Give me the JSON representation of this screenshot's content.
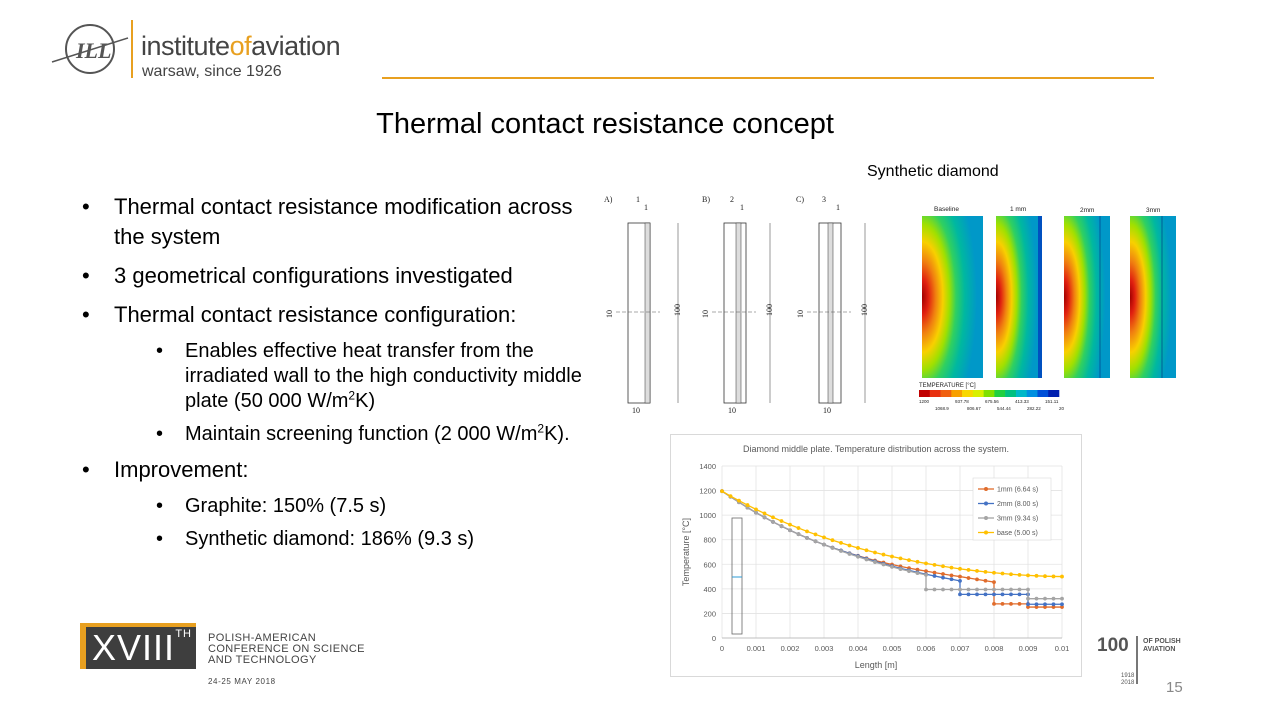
{
  "header": {
    "org_prefix": "institute",
    "org_of": "of",
    "org_suffix": "aviation",
    "org_tagline": "warsaw, since 1926",
    "logo_mark": "ILL"
  },
  "slide": {
    "title": "Thermal contact resistance concept",
    "page_number": "15"
  },
  "bullets": {
    "b1": "Thermal contact resistance modification across the system",
    "b2": "3 geometrical configurations investigated",
    "b3": "Thermal contact resistance configuration:",
    "b3a_pre": "Enables effective heat transfer from the irradiated wall to the high conductivity middle plate (50 000 W/m",
    "b3a_sup": "2",
    "b3a_post": "K)",
    "b3b_pre": "Maintain screening function (2 000 W/m",
    "b3b_sup": "2",
    "b3b_post": "K).",
    "b4": "Improvement:",
    "b4a": "Graphite: 150% (7.5 s)",
    "b4b": "Synthetic diamond: 186% (9.3 s)"
  },
  "figures": {
    "contour_label": "Synthetic diamond",
    "schematic": {
      "panels": [
        {
          "tag": "A)",
          "top_dim": "1",
          "small_dim": "1"
        },
        {
          "tag": "B)",
          "top_dim": "2",
          "small_dim": "1"
        },
        {
          "tag": "C)",
          "top_dim": "3",
          "small_dim": "1"
        }
      ],
      "height_dim": "100",
      "mid_dim": "10",
      "width_dim": "10"
    },
    "contour": {
      "panels": [
        "Baseline",
        "1 mm",
        "2mm",
        "3mm"
      ],
      "legend_title": "TEMPERATURE [°C]",
      "legend_top": [
        "1200",
        "937.78",
        "675.56",
        "413.33",
        "151.11"
      ],
      "legend_bottom": [
        "1068.9",
        "806.67",
        "544.44",
        "282.22",
        "20"
      ],
      "legend_colors": [
        "#c00000",
        "#e83010",
        "#f06010",
        "#f8a000",
        "#f8d800",
        "#d8f000",
        "#80e000",
        "#20d040",
        "#00c080",
        "#00b8c8",
        "#0090e0",
        "#0050d8",
        "#0020b0"
      ]
    }
  },
  "chart_data": {
    "type": "line",
    "title": "Diamond middle plate. Temperature distribution across the system.",
    "xlabel": "Length [m]",
    "ylabel": "Temperature [°C]",
    "xlim": [
      0,
      0.01
    ],
    "ylim": [
      0,
      1400
    ],
    "xticks": [
      "0",
      "0.001",
      "0.002",
      "0.003",
      "0.004",
      "0.005",
      "0.006",
      "0.007",
      "0.008",
      "0.009",
      "0.01"
    ],
    "yticks": [
      "0",
      "200",
      "400",
      "600",
      "800",
      "1000",
      "1200",
      "1400"
    ],
    "x": [
      0,
      0.00025,
      0.0005,
      0.00075,
      0.001,
      0.00125,
      0.0015,
      0.00175,
      0.002,
      0.00225,
      0.0025,
      0.00275,
      0.003,
      0.00325,
      0.0035,
      0.00375,
      0.004,
      0.00425,
      0.0045,
      0.00475,
      0.005,
      0.00525,
      0.0055,
      0.00575,
      0.006,
      0.00625,
      0.0065,
      0.00675,
      0.007,
      0.00725,
      0.0075,
      0.00775,
      0.008,
      0.00825,
      0.0085,
      0.00875,
      0.009,
      0.00925,
      0.0095,
      0.00975,
      0.01
    ],
    "series": [
      {
        "name": "1mm (6.64 s)",
        "color": "#e06c2c",
        "values": [
          1195,
          1150,
          1105,
          1062,
          1020,
          982,
          945,
          910,
          877,
          845,
          815,
          787,
          760,
          735,
          712,
          690,
          669,
          649,
          631,
          614,
          598,
          583,
          569,
          556,
          544,
          532,
          521,
          510,
          500,
          488,
          477,
          466,
          455,
          null,
          null,
          null,
          null,
          null,
          null,
          null,
          null
        ],
        "steps": [
          [
            0.008,
            455
          ],
          [
            0.008,
            278
          ],
          [
            0.009,
            278
          ],
          [
            0.009,
            252
          ],
          [
            0.01,
            252
          ]
        ]
      },
      {
        "name": "2mm (8.00 s)",
        "color": "#4472c4",
        "values": [
          1195,
          1150,
          1105,
          1062,
          1020,
          982,
          945,
          910,
          877,
          845,
          815,
          787,
          760,
          735,
          712,
          689,
          667,
          645,
          624,
          604,
          585,
          567,
          550,
          534,
          519,
          505,
          491,
          478,
          465,
          null,
          null,
          null,
          null,
          null,
          null,
          null,
          null,
          null,
          null,
          null,
          null
        ],
        "steps": [
          [
            0.007,
            465
          ],
          [
            0.007,
            355
          ],
          [
            0.009,
            355
          ],
          [
            0.009,
            275
          ],
          [
            0.01,
            275
          ]
        ]
      },
      {
        "name": "3mm (9.34 s)",
        "color": "#a5a5a5",
        "values": [
          1195,
          1150,
          1105,
          1062,
          1020,
          982,
          945,
          910,
          877,
          845,
          815,
          787,
          760,
          733,
          708,
          684,
          661,
          639,
          618,
          598,
          579,
          561,
          544,
          528,
          514,
          null,
          null,
          null,
          null,
          null,
          null,
          null,
          null,
          null,
          null,
          null,
          null,
          null,
          null,
          null,
          null
        ],
        "steps": [
          [
            0.006,
            514
          ],
          [
            0.006,
            395
          ],
          [
            0.009,
            395
          ],
          [
            0.009,
            320
          ],
          [
            0.01,
            320
          ]
        ]
      },
      {
        "name": "base  (5.00 s)",
        "color": "#ffc000",
        "values": [
          1195,
          1155,
          1118,
          1082,
          1047,
          1014,
          982,
          952,
          923,
          895,
          868,
          843,
          819,
          796,
          774,
          753,
          733,
          714,
          696,
          679,
          663,
          648,
          634,
          620,
          607,
          595,
          584,
          573,
          563,
          554,
          546,
          538,
          531,
          525,
          519,
          514,
          510,
          506,
          503,
          501,
          500
        ]
      }
    ],
    "legend_position": "right"
  },
  "footer": {
    "conf_roman": "XVIII",
    "conf_th": "TH",
    "conf_line1": "POLISH-AMERICAN",
    "conf_line2": "CONFERENCE ON SCIENCE",
    "conf_line3": "AND TECHNOLOGY",
    "conf_date": "24-25 MAY 2018",
    "anniv_number": "100",
    "anniv_line1": "OF POLISH",
    "anniv_line2": "AVIATION",
    "anniv_years_1": "1918",
    "anniv_years_2": "2018"
  },
  "colors": {
    "accent": "#e8a020",
    "text": "#000000"
  }
}
